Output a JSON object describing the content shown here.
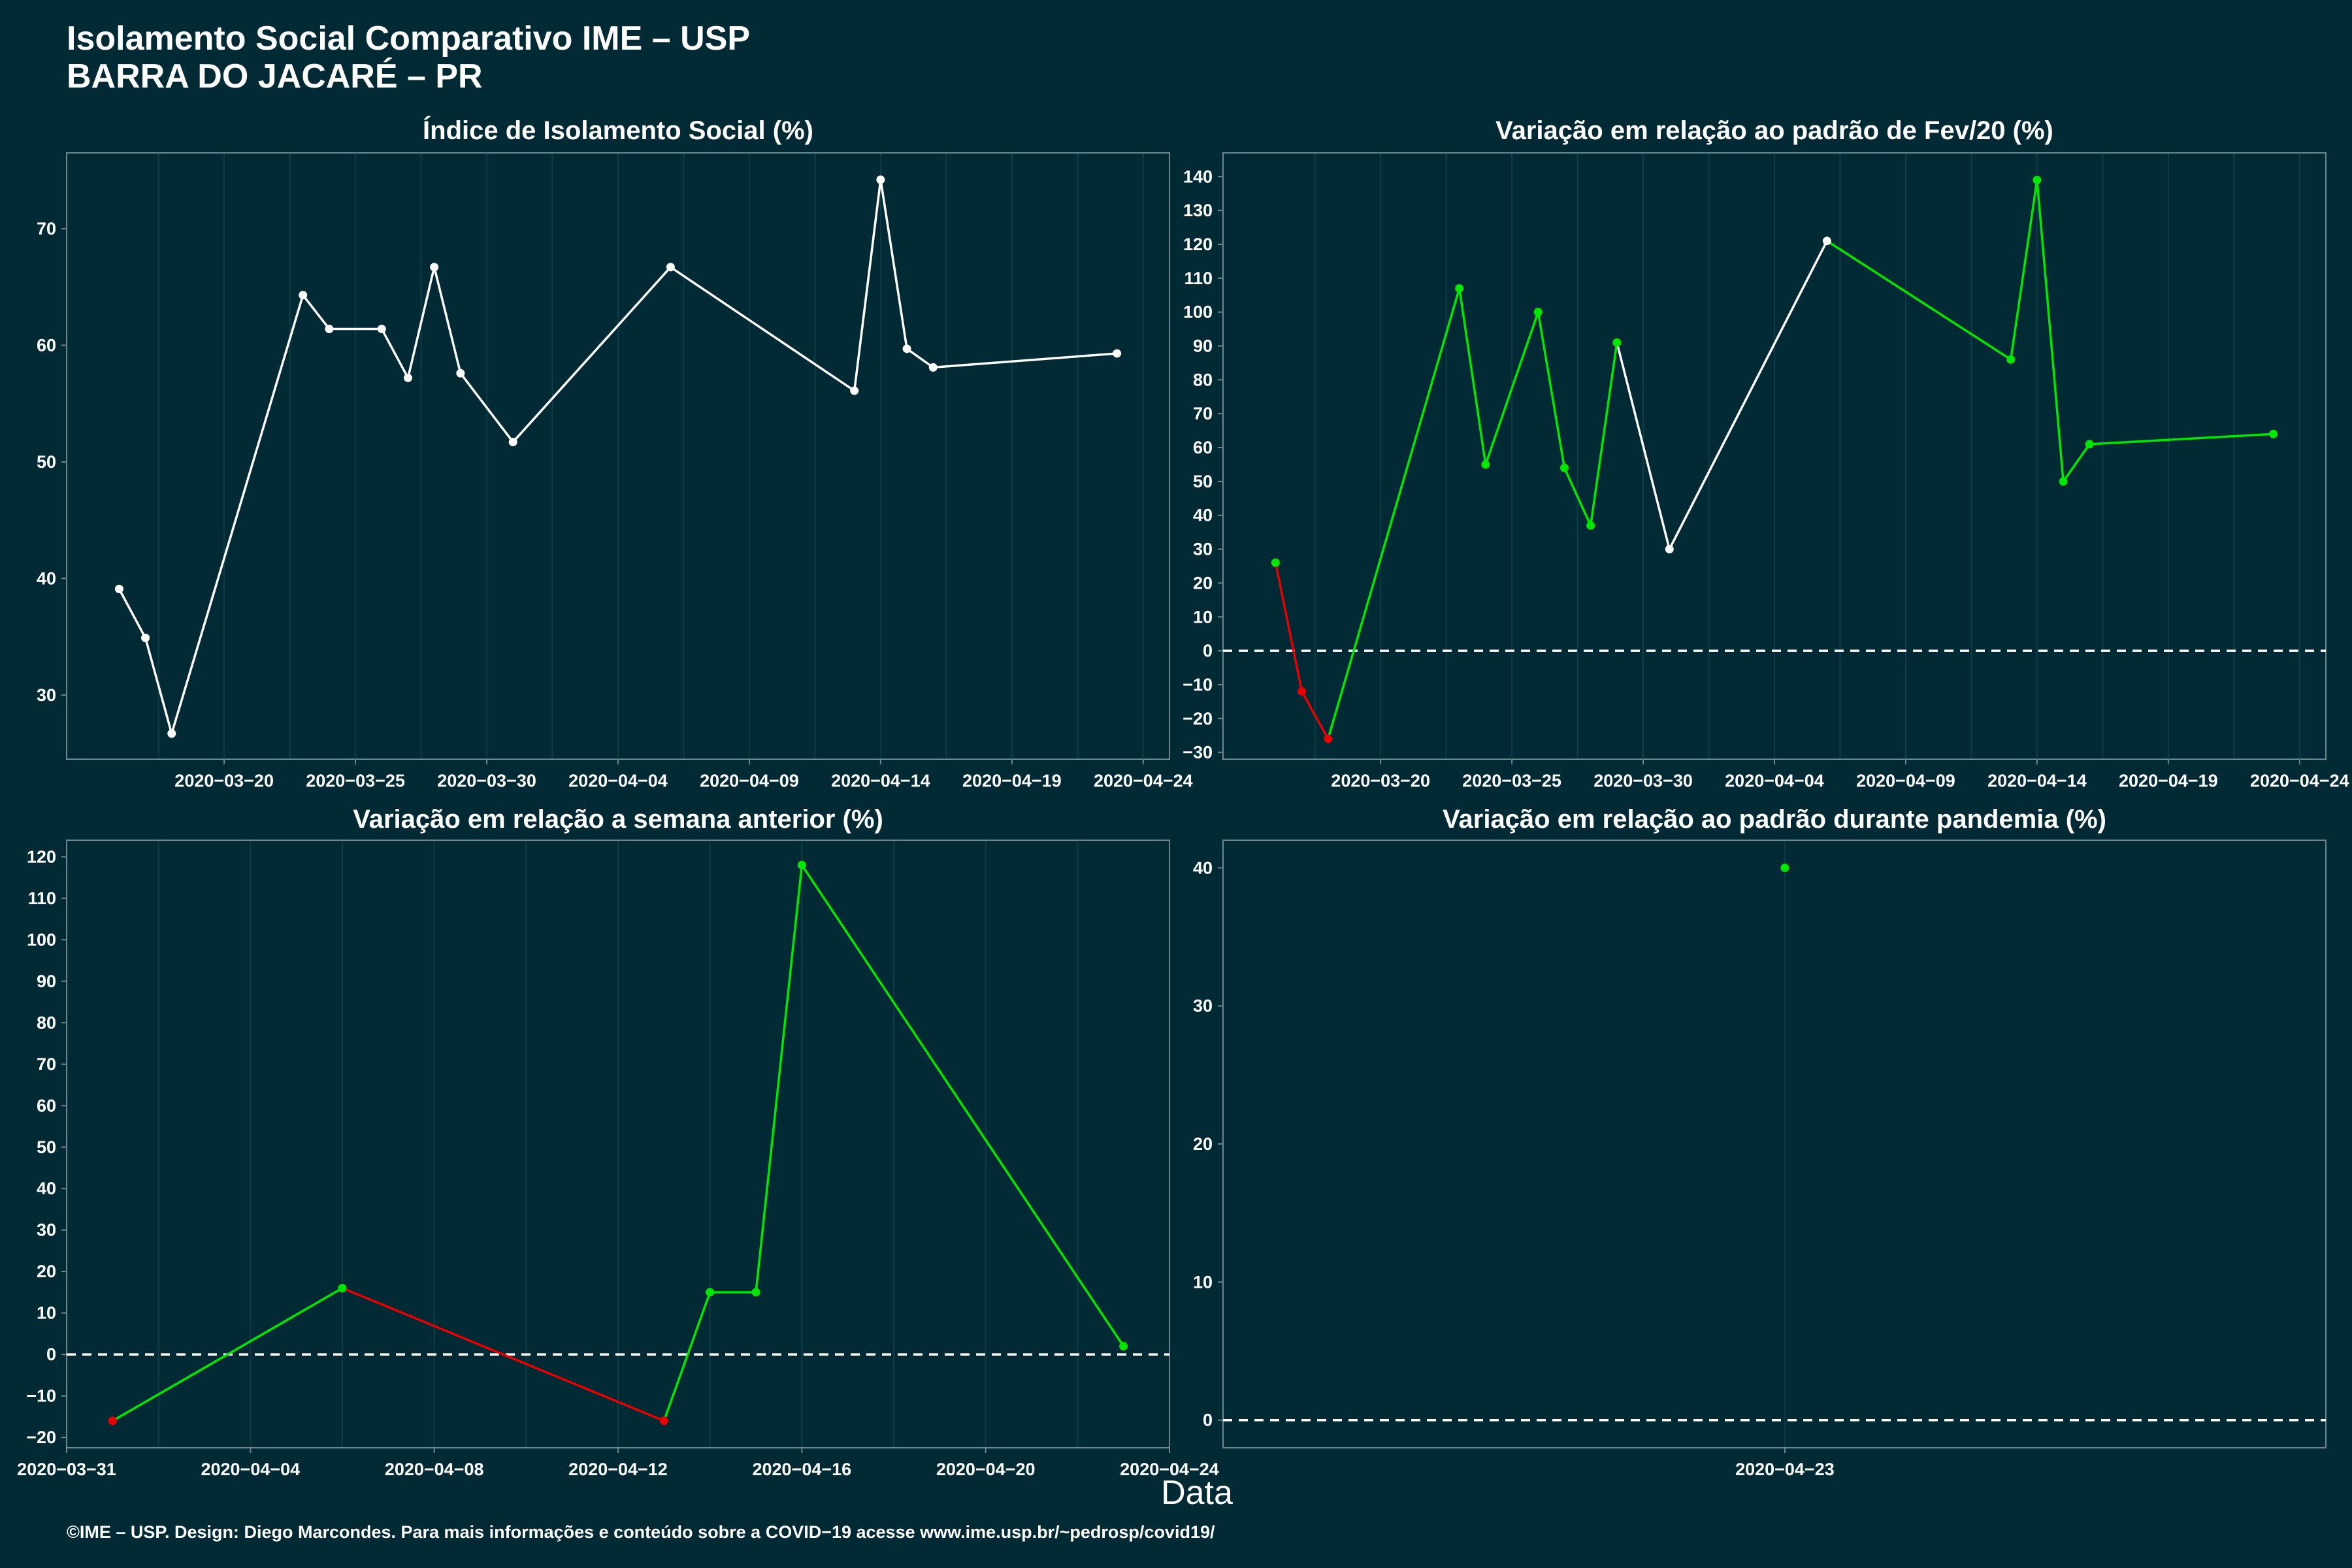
{
  "header": {
    "title_line1": "Isolamento Social Comparativo IME – USP",
    "title_line2": "BARRA DO JACARÉ – PR"
  },
  "x_axis_label": "Data",
  "caption": "©IME – USP. Design: Diego Marcondes. Para mais informações e conteúdo sobre a COVID−19 acesse www.ime.usp.br/~pedrosp/covid19/",
  "colors": {
    "background": "#022a35",
    "line": "#ffffff",
    "positive": "#00e600",
    "negative": "#e60000",
    "grid": "#0e3c46",
    "border": "#6d8790"
  },
  "chart_data": [
    {
      "type": "line",
      "title": "Índice de Isolamento Social (%)",
      "xlabel": "Data",
      "ylabel": "",
      "xlim": [
        "2020-03-14",
        "2020-04-25"
      ],
      "xticks": [
        "2020-03-20",
        "2020-03-25",
        "2020-03-30",
        "2020-04-04",
        "2020-04-09",
        "2020-04-14",
        "2020-04-19",
        "2020-04-24"
      ],
      "ylim": [
        24.5,
        76.5
      ],
      "yticks": [
        30,
        40,
        50,
        60,
        70
      ],
      "zero_line": false,
      "series": [
        {
          "x": [
            "2020-03-16",
            "2020-03-17",
            "2020-03-18",
            "2020-03-23",
            "2020-03-24",
            "2020-03-26",
            "2020-03-27",
            "2020-03-28",
            "2020-03-29",
            "2020-03-31",
            "2020-04-06",
            "2020-04-13",
            "2020-04-14",
            "2020-04-15",
            "2020-04-16",
            "2020-04-23"
          ],
          "y": [
            39.1,
            34.9,
            26.7,
            64.3,
            61.4,
            61.4,
            57.2,
            66.7,
            57.6,
            51.7,
            66.7,
            56.1,
            74.2,
            59.7,
            58.1,
            59.3
          ],
          "colors": [
            "white",
            "white",
            "white",
            "white",
            "white",
            "white",
            "white",
            "white",
            "white",
            "white",
            "white",
            "white",
            "white",
            "white",
            "white",
            "white"
          ]
        }
      ]
    },
    {
      "type": "line",
      "title": "Variação em relação ao padrão de Fev/20 (%)",
      "xlabel": "Data",
      "ylabel": "",
      "xlim": [
        "2020-03-14",
        "2020-04-25"
      ],
      "xticks": [
        "2020-03-20",
        "2020-03-25",
        "2020-03-30",
        "2020-04-04",
        "2020-04-09",
        "2020-04-14",
        "2020-04-19",
        "2020-04-24"
      ],
      "ylim": [
        -32,
        147
      ],
      "yticks": [
        -30,
        -20,
        -10,
        0,
        10,
        20,
        30,
        40,
        50,
        60,
        70,
        80,
        90,
        100,
        110,
        120,
        130,
        140
      ],
      "zero_line": true,
      "series": [
        {
          "x": [
            "2020-03-16",
            "2020-03-17",
            "2020-03-18",
            "2020-03-23",
            "2020-03-24",
            "2020-03-26",
            "2020-03-27",
            "2020-03-28",
            "2020-03-29",
            "2020-03-31",
            "2020-04-06",
            "2020-04-13",
            "2020-04-14",
            "2020-04-15",
            "2020-04-16",
            "2020-04-23"
          ],
          "y": [
            26,
            -12,
            -26,
            107,
            55,
            100,
            54,
            37,
            91,
            30,
            121,
            86,
            139,
            50,
            61,
            64
          ],
          "colors": [
            "green",
            "red",
            "red",
            "green",
            "green",
            "green",
            "green",
            "green",
            "green",
            "white",
            "white",
            "green",
            "green",
            "green",
            "green",
            "green"
          ]
        }
      ]
    },
    {
      "type": "line",
      "title": "Variação em relação a semana anterior (%)",
      "xlabel": "Data",
      "ylabel": "",
      "xlim": [
        "2020-03-31",
        "2020-04-24"
      ],
      "xticks": [
        "2020-03-31",
        "2020-04-04",
        "2020-04-08",
        "2020-04-12",
        "2020-04-16",
        "2020-04-20",
        "2020-04-24"
      ],
      "ylim": [
        -22.5,
        124
      ],
      "yticks": [
        -20,
        -10,
        0,
        10,
        20,
        30,
        40,
        50,
        60,
        70,
        80,
        90,
        100,
        110,
        120
      ],
      "zero_line": true,
      "series": [
        {
          "x": [
            "2020-04-01",
            "2020-04-06",
            "2020-04-13",
            "2020-04-14",
            "2020-04-15",
            "2020-04-16",
            "2020-04-23"
          ],
          "y": [
            -16,
            16,
            -16,
            15,
            15,
            118,
            2
          ],
          "colors": [
            "red",
            "green",
            "red",
            "green",
            "green",
            "green",
            "green"
          ]
        }
      ]
    },
    {
      "type": "scatter",
      "title": "Variação em relação ao padrão durante pandemia (%)",
      "xlabel": "Data",
      "ylabel": "",
      "xlim": [
        "2020-03-27",
        "2020-05-19"
      ],
      "xticks": [
        "2020-04-23"
      ],
      "ylim": [
        -2,
        42
      ],
      "yticks": [
        0,
        10,
        20,
        30,
        40
      ],
      "zero_line": true,
      "series": [
        {
          "x": [
            "2020-04-23"
          ],
          "y": [
            40
          ],
          "colors": [
            "green"
          ]
        }
      ]
    }
  ]
}
